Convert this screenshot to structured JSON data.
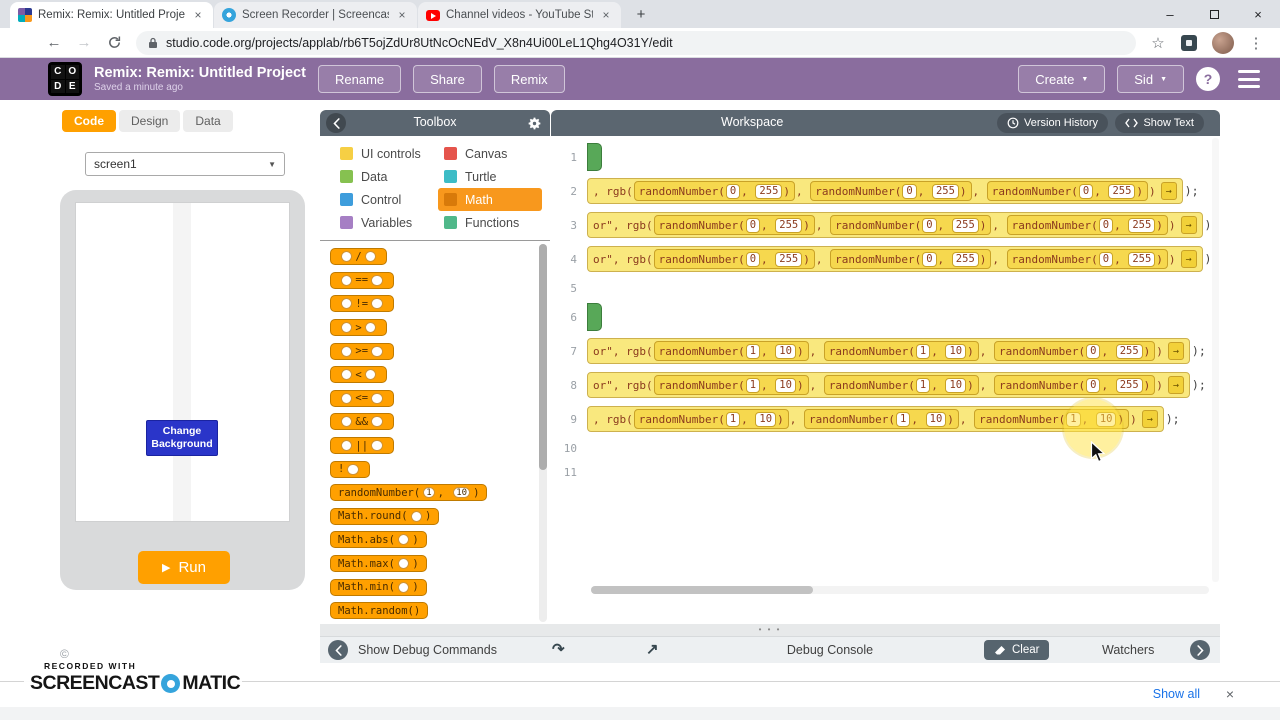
{
  "icons": {
    "minimize": "–",
    "close": "×",
    "new_tab": "+",
    "menu_dots": "⋮",
    "star": "☆",
    "back_arrow": "←",
    "forward_arrow": "→",
    "caret_down": "▼",
    "play": "▶",
    "copyright": "©",
    "step_over": "↷",
    "step_out": "↗",
    "block_arrow": "→",
    "handle_dots": "• • •"
  },
  "browser": {
    "tabs": [
      {
        "title": "Remix: Remix: Untitled Project -",
        "favicon": "code-org",
        "active": true
      },
      {
        "title": "Screen Recorder | Screencast-O-",
        "favicon": "screencast",
        "active": false
      },
      {
        "title": "Channel videos - YouTube Studio",
        "favicon": "youtube",
        "active": false
      }
    ],
    "url": "studio.code.org/projects/applab/rb6T5ojZdUr8UtNcOcNEdV_X8n4Ui00LeL1Qhg4O31Y/edit"
  },
  "app_header": {
    "logo_letters": [
      "C",
      "O",
      "D",
      "E"
    ],
    "title": "Remix: Remix: Untitled Project",
    "saved_status": "Saved a minute ago",
    "rename_label": "Rename",
    "share_label": "Share",
    "remix_label": "Remix",
    "create_label": "Create",
    "user_label": "Sid",
    "help_label": "?"
  },
  "left_panel": {
    "tabs": [
      {
        "label": "Code",
        "active": true
      },
      {
        "label": "Design",
        "active": false
      },
      {
        "label": "Data",
        "active": false
      }
    ],
    "screen_selector": "screen1",
    "change_background_label": "Change Background",
    "run_label": "Run"
  },
  "toolbox": {
    "title": "Toolbox",
    "categories": [
      {
        "label": "UI controls",
        "color": "#f6cf44",
        "selected": false
      },
      {
        "label": "Canvas",
        "color": "#e5544c",
        "selected": false
      },
      {
        "label": "Data",
        "color": "#86c150",
        "selected": false
      },
      {
        "label": "Turtle",
        "color": "#3dbcc6",
        "selected": false
      },
      {
        "label": "Control",
        "color": "#3e9ddc",
        "selected": false
      },
      {
        "label": "Math",
        "color": "#d87a0a",
        "selected": true
      },
      {
        "label": "Variables",
        "color": "#a67fc4",
        "selected": false
      },
      {
        "label": "Functions",
        "color": "#50b88a",
        "selected": false
      }
    ],
    "blocks": [
      {
        "op": "/"
      },
      {
        "op": "=="
      },
      {
        "op": "!="
      },
      {
        "op": ">"
      },
      {
        "op": ">="
      },
      {
        "op": "<"
      },
      {
        "op": "<="
      },
      {
        "op": "&&"
      },
      {
        "op": "||"
      },
      {
        "op": "!",
        "unary": true
      },
      {
        "fn": "randomNumber",
        "args": [
          "1",
          "10"
        ]
      },
      {
        "fn": "Math.round",
        "args": [
          ""
        ]
      },
      {
        "fn": "Math.abs",
        "args": [
          ""
        ]
      },
      {
        "fn": "Math.max",
        "args": [
          ""
        ]
      },
      {
        "fn": "Math.min",
        "args": [
          ""
        ]
      },
      {
        "fn": "Math.random",
        "args": []
      }
    ]
  },
  "workspace": {
    "title": "Workspace",
    "version_history_label": "Version History",
    "show_text_label": "Show Text",
    "fn_name": "randomNumber",
    "rgb_close": ")",
    "stmt_tail": ");",
    "lines": [
      {
        "num": 1,
        "kind": "green"
      },
      {
        "num": 2,
        "kind": "code",
        "prefix": ", rgb(",
        "calls": [
          [
            "0",
            "255"
          ],
          [
            "0",
            "255"
          ],
          [
            "0",
            "255"
          ]
        ]
      },
      {
        "num": 3,
        "kind": "code",
        "prefix": "or\", rgb(",
        "calls": [
          [
            "0",
            "255"
          ],
          [
            "0",
            "255"
          ],
          [
            "0",
            "255"
          ]
        ]
      },
      {
        "num": 4,
        "kind": "code",
        "prefix": "or\", rgb(",
        "calls": [
          [
            "0",
            "255"
          ],
          [
            "0",
            "255"
          ],
          [
            "0",
            "255"
          ]
        ]
      },
      {
        "num": 5,
        "kind": "empty"
      },
      {
        "num": 6,
        "kind": "green"
      },
      {
        "num": 7,
        "kind": "code",
        "prefix": "or\", rgb(",
        "calls": [
          [
            "1",
            "10"
          ],
          [
            "1",
            "10"
          ],
          [
            "0",
            "255"
          ]
        ]
      },
      {
        "num": 8,
        "kind": "code",
        "prefix": "or\", rgb(",
        "calls": [
          [
            "1",
            "10"
          ],
          [
            "1",
            "10"
          ],
          [
            "0",
            "255"
          ]
        ]
      },
      {
        "num": 9,
        "kind": "code",
        "prefix": ", rgb(",
        "calls": [
          [
            "1",
            "10"
          ],
          [
            "1",
            "10"
          ],
          [
            "1",
            "10"
          ]
        ]
      },
      {
        "num": 10,
        "kind": "empty"
      },
      {
        "num": 11,
        "kind": "empty"
      }
    ]
  },
  "debug": {
    "show_commands_label": "Show Debug Commands",
    "console_label": "Debug Console",
    "clear_label": "Clear",
    "watchers_label": "Watchers"
  },
  "download_bar": {
    "show_all_label": "Show all"
  },
  "watermark": {
    "recorded_with": "RECORDED WITH",
    "brand_left": "SCREENCAST",
    "brand_right": "MATIC"
  }
}
